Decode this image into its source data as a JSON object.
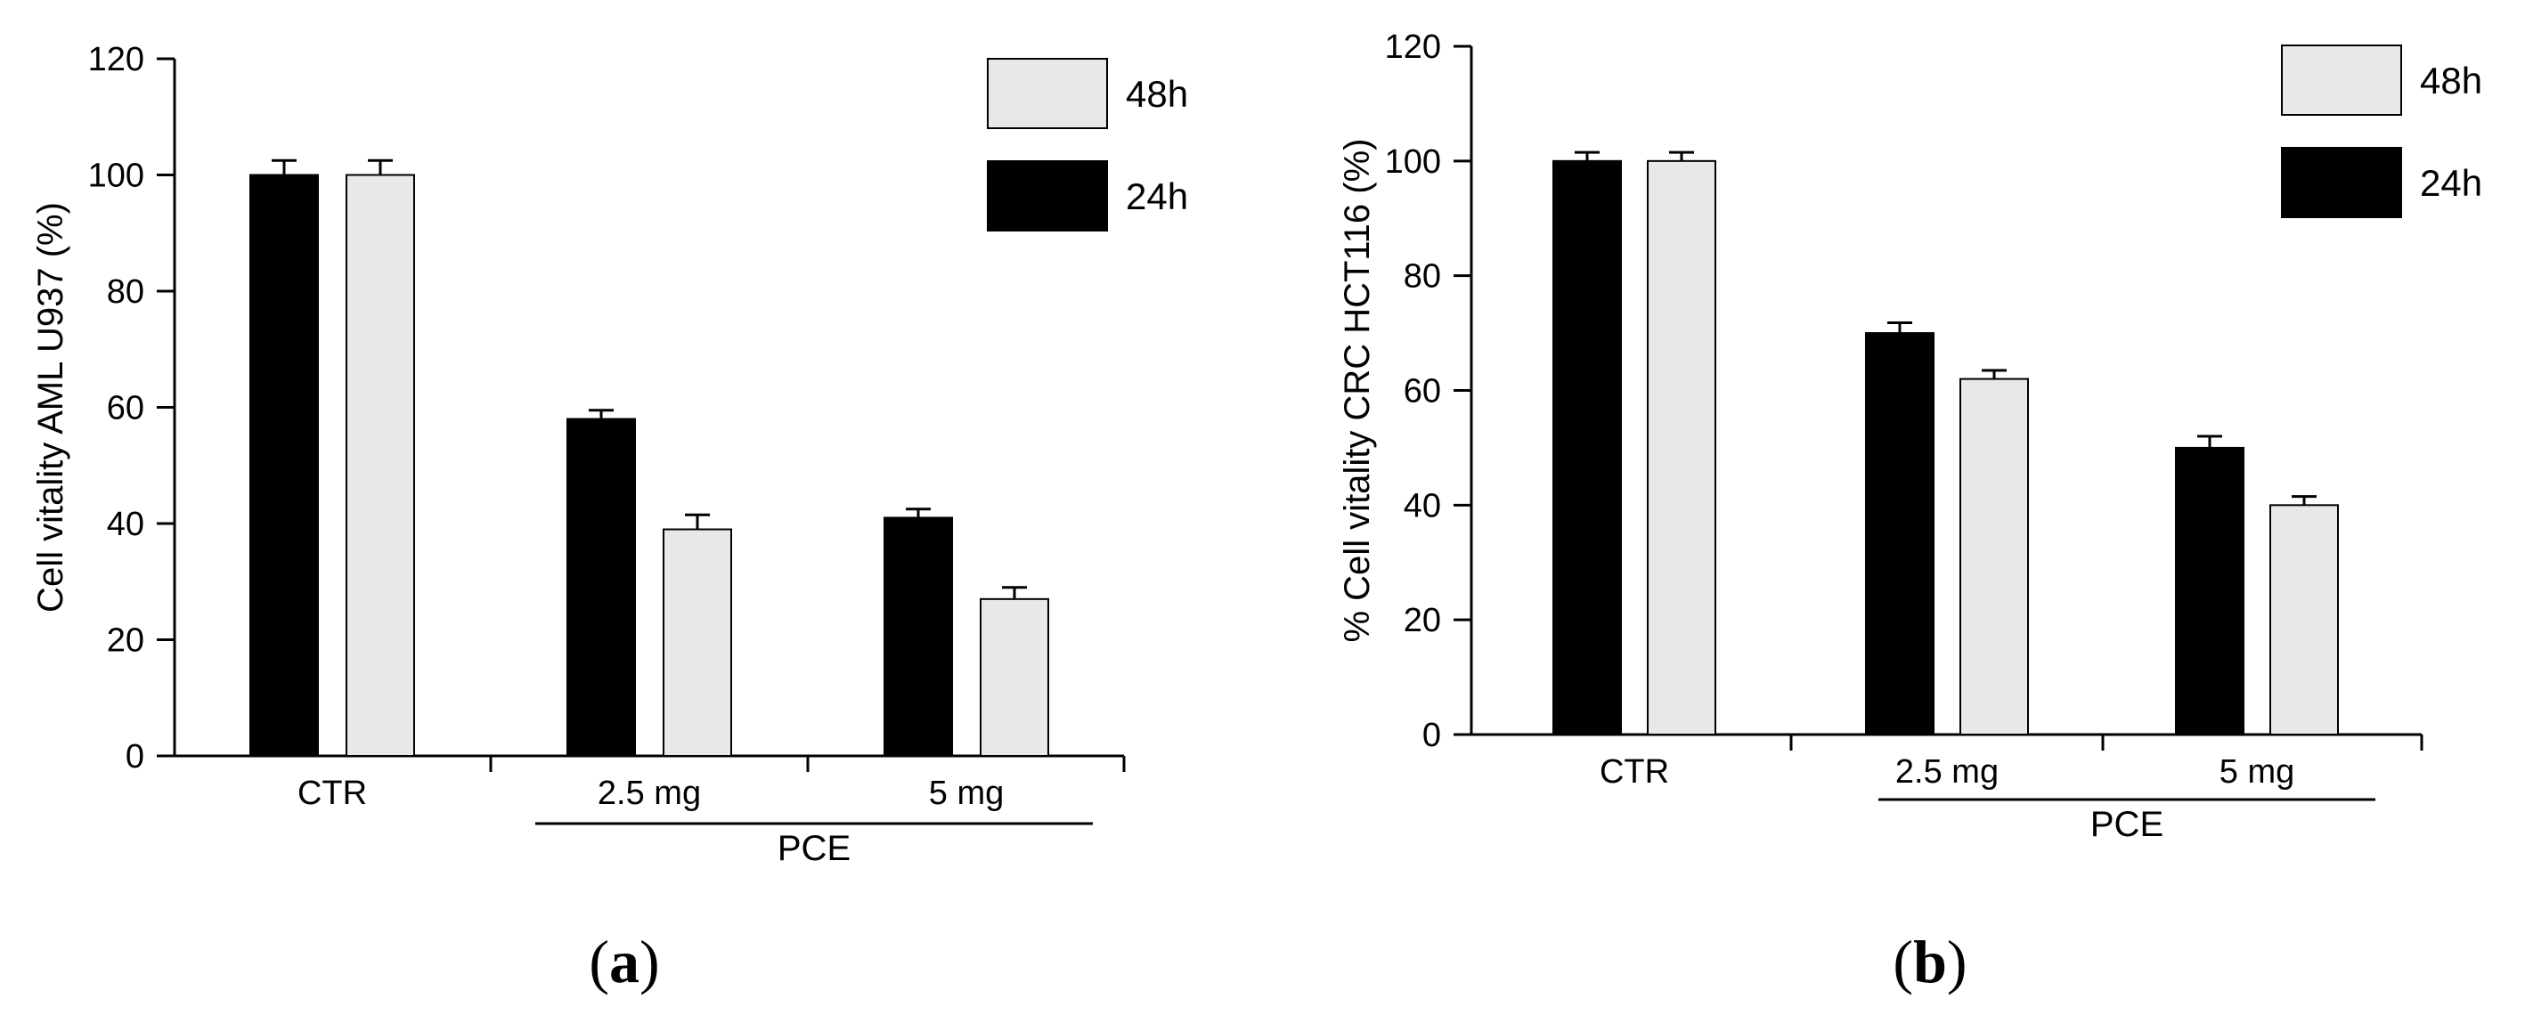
{
  "chart_data": [
    {
      "type": "bar",
      "panel_label": "a",
      "ylabel": "Cell vitality AML U937 (%)",
      "xlabel": "",
      "ylim": [
        0,
        120
      ],
      "yticks": [
        0,
        20,
        40,
        60,
        80,
        100,
        120
      ],
      "categories": [
        "CTR",
        "2.5 mg",
        "5 mg"
      ],
      "group_bracket": {
        "label": "PCE",
        "spans": [
          "2.5 mg",
          "5 mg"
        ]
      },
      "series": [
        {
          "name": "24h",
          "color": "#000000",
          "values": [
            100,
            58,
            41
          ],
          "errors": [
            2.5,
            1.5,
            1.5
          ]
        },
        {
          "name": "48h",
          "color": "#e8e8e8",
          "values": [
            100,
            39,
            27
          ],
          "errors": [
            2.5,
            2.5,
            2.0
          ]
        }
      ],
      "legend": {
        "position": "top-right",
        "order": [
          "48h",
          "24h"
        ]
      },
      "grid": false
    },
    {
      "type": "bar",
      "panel_label": "b",
      "ylabel": "% Cell vitality CRC HCT116 (%)",
      "xlabel": "",
      "ylim": [
        0,
        120
      ],
      "yticks": [
        0,
        20,
        40,
        60,
        80,
        100,
        120
      ],
      "categories": [
        "CTR",
        "2.5 mg",
        "5 mg"
      ],
      "group_bracket": {
        "label": "PCE",
        "spans": [
          "2.5 mg",
          "5 mg"
        ]
      },
      "series": [
        {
          "name": "24h",
          "color": "#000000",
          "values": [
            100,
            70,
            50
          ],
          "errors": [
            1.5,
            1.8,
            2.0
          ]
        },
        {
          "name": "48h",
          "color": "#e8e8e8",
          "values": [
            100,
            62,
            40
          ],
          "errors": [
            1.5,
            1.5,
            1.5
          ]
        }
      ],
      "legend": {
        "position": "top-right",
        "order": [
          "48h",
          "24h"
        ]
      },
      "grid": false
    }
  ]
}
